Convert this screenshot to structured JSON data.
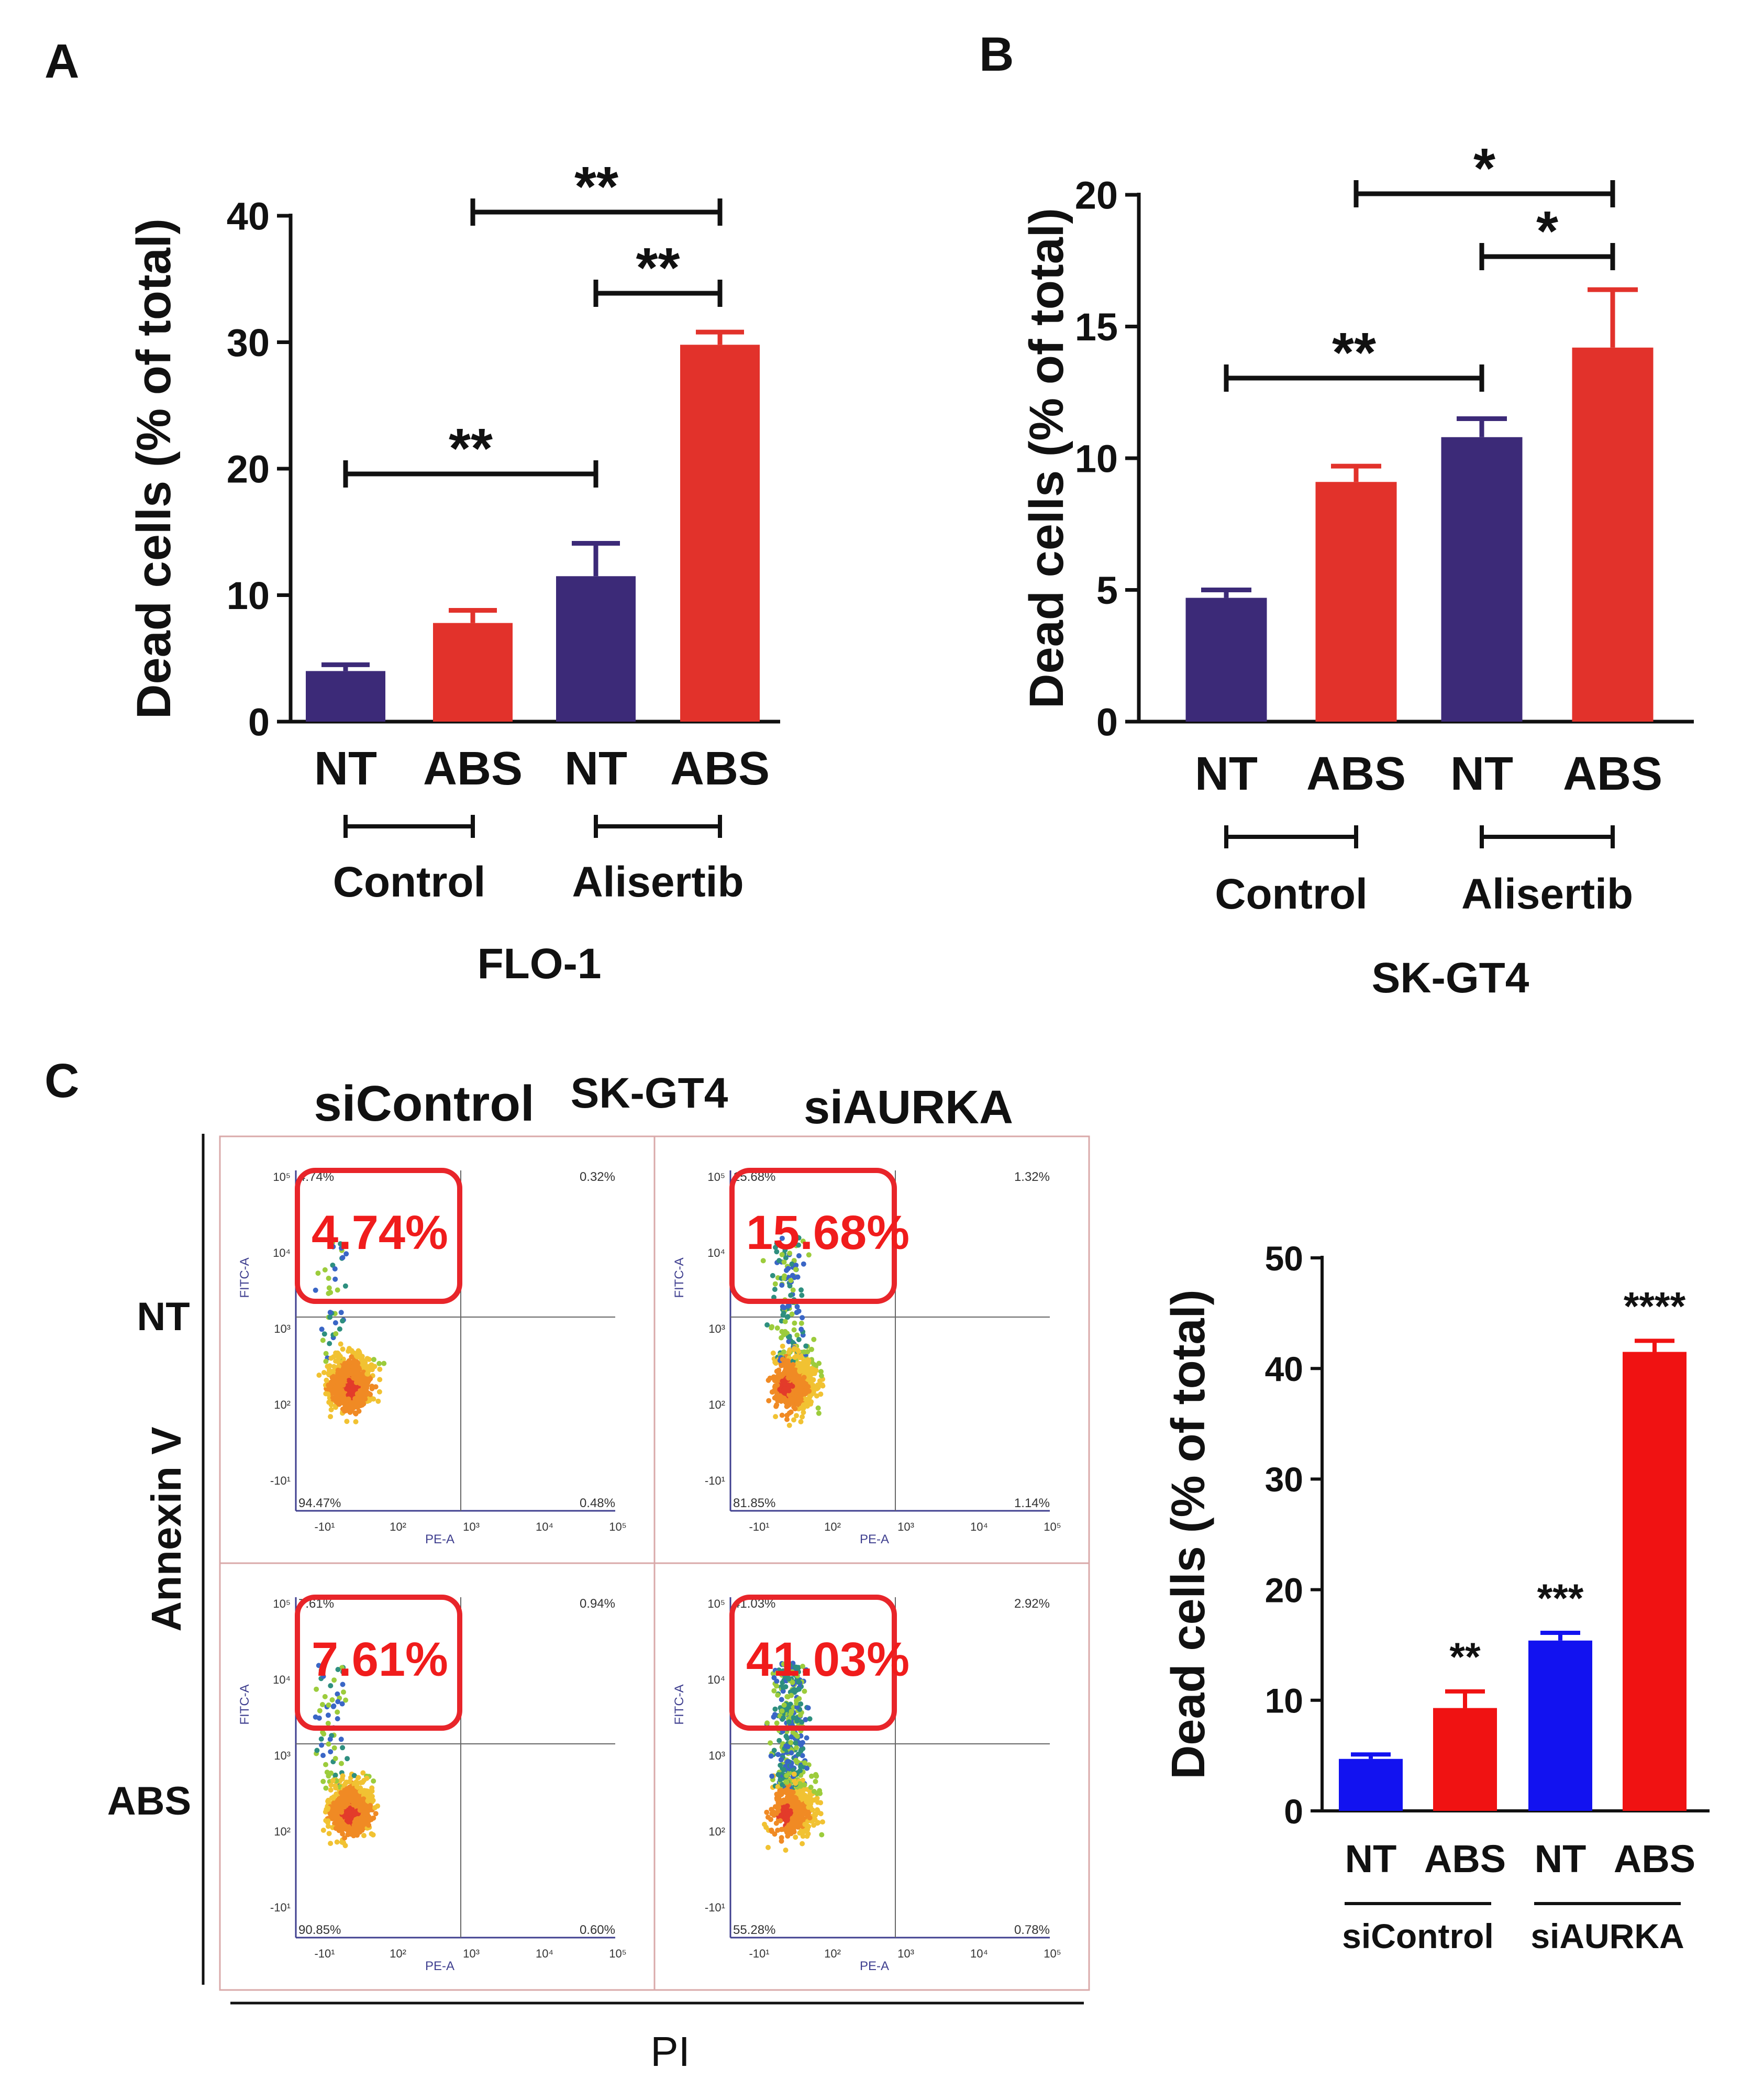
{
  "panel_labels": {
    "a": "A",
    "b": "B",
    "c": "C"
  },
  "chart_data": [
    {
      "id": "A",
      "type": "bar",
      "ylabel": "Dead cells (% of total)",
      "ylim": [
        0,
        40
      ],
      "yticks": [
        "0",
        "10",
        "20",
        "30",
        "40"
      ],
      "categories": [
        "NT",
        "ABS",
        "NT",
        "ABS"
      ],
      "values": [
        4,
        7.8,
        11.5,
        29.8
      ],
      "errors": [
        0.5,
        1.0,
        2.6,
        1.0
      ],
      "colors": [
        "#3c2a78",
        "#e2322b",
        "#3c2a78",
        "#e2322b"
      ],
      "groups": [
        {
          "label": "Control"
        },
        {
          "label": "Alisertib"
        }
      ],
      "xlabel": "FLO-1",
      "significance": [
        {
          "from": 0,
          "to": 2,
          "label": "**"
        },
        {
          "from": 2,
          "to": 3,
          "label": "**"
        },
        {
          "from": 1,
          "to": 3,
          "label": "**"
        }
      ]
    },
    {
      "id": "B",
      "type": "bar",
      "ylabel": "Dead cells (% of total)",
      "ylim": [
        0,
        20
      ],
      "yticks": [
        "0",
        "5",
        "10",
        "15",
        "20"
      ],
      "categories": [
        "NT",
        "ABS",
        "NT",
        "ABS"
      ],
      "values": [
        4.7,
        9.1,
        10.8,
        14.2
      ],
      "errors": [
        0.3,
        0.6,
        0.7,
        2.2
      ],
      "colors": [
        "#3c2a78",
        "#e2322b",
        "#3c2a78",
        "#e2322b"
      ],
      "groups": [
        {
          "label": "Control"
        },
        {
          "label": "Alisertib"
        }
      ],
      "xlabel": "SK-GT4",
      "significance": [
        {
          "from": 0,
          "to": 2,
          "label": "**"
        },
        {
          "from": 2,
          "to": 3,
          "label": "*"
        },
        {
          "from": 1,
          "to": 3,
          "label": "*"
        }
      ]
    },
    {
      "id": "C-bar",
      "type": "bar",
      "ylabel": "Dead cells (% of total)",
      "ylim": [
        0,
        50
      ],
      "yticks": [
        "0",
        "10",
        "20",
        "30",
        "40",
        "50"
      ],
      "categories": [
        "NT",
        "ABS",
        "NT",
        "ABS"
      ],
      "values": [
        4.7,
        9.3,
        15.4,
        41.5
      ],
      "errors": [
        0.4,
        1.5,
        0.7,
        1.0
      ],
      "colors": [
        "#1212f0",
        "#f01212",
        "#1212f0",
        "#f01212"
      ],
      "groups": [
        {
          "label": "siControl"
        },
        {
          "label": "siAURKA"
        }
      ],
      "stars": [
        "",
        "**",
        "***",
        "****"
      ]
    },
    {
      "id": "C-flow",
      "type": "scatter",
      "title_left": "siControl",
      "title_center": "SK-GT4",
      "title_right": "siAURKA",
      "row_labels": [
        "NT",
        "ABS"
      ],
      "y_axis_label": "Annexin V",
      "x_axis_label": "PI",
      "channel_x": "PE-A",
      "channel_y": "FITC-A",
      "panels": [
        {
          "condition": "siControl NT",
          "highlight": "4.74%",
          "ul": "4.74%",
          "ur": "0.32%",
          "ll": "94.47%",
          "lr": "0.48%"
        },
        {
          "condition": "siAURKA NT",
          "highlight": "15.68%",
          "ul": "15.68%",
          "ur": "1.32%",
          "ll": "81.85%",
          "lr": "1.14%"
        },
        {
          "condition": "siControl ABS",
          "highlight": "7.61%",
          "ul": "7.61%",
          "ur": "0.94%",
          "ll": "90.85%",
          "lr": "0.60%"
        },
        {
          "condition": "siAURKA ABS",
          "highlight": "41.03%",
          "ul": "41.03%",
          "ur": "2.92%",
          "ll": "55.28%",
          "lr": "0.78%"
        }
      ],
      "x_ticks": [
        "-10¹",
        "10²",
        "10³",
        "10⁴",
        "10⁵"
      ],
      "y_ticks": [
        "10⁵",
        "10⁴",
        "10³",
        "10²",
        "-10¹"
      ]
    }
  ]
}
